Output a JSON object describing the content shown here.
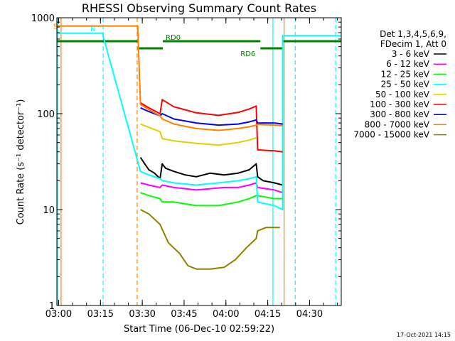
{
  "chart_data": {
    "type": "line",
    "title": "RHESSI Observing Summary Count Rates",
    "xlabel": "Start Time (06-Dec-10 02:59:22)",
    "ylabel": "Count Rate (s⁻¹ detector⁻¹)",
    "y_scale": "log",
    "ylim": [
      1,
      1000
    ],
    "xlim": [
      0,
      102
    ],
    "x_ticks": [
      {
        "value": 0.633,
        "label": "03:00"
      },
      {
        "value": 15.633,
        "label": "03:15"
      },
      {
        "value": 30.633,
        "label": "03:30"
      },
      {
        "value": 45.633,
        "label": "03:45"
      },
      {
        "value": 60.633,
        "label": "04:00"
      },
      {
        "value": 75.633,
        "label": "04:15"
      },
      {
        "value": 90.633,
        "label": "04:30"
      }
    ],
    "y_ticks": [
      {
        "value": 1,
        "label": "1"
      },
      {
        "value": 10,
        "label": "10"
      },
      {
        "value": 100,
        "label": "100"
      },
      {
        "value": 1000,
        "label": "1000"
      }
    ],
    "legend": {
      "position": "right",
      "header": [
        "Det 1,3,4,5,6,9,",
        "FDecim 1, Att 0"
      ]
    },
    "series": [
      {
        "name": "3 - 6 keV",
        "color": "#000000",
        "x": [
          30,
          31.5,
          33,
          35,
          37,
          37.8,
          39,
          42,
          46,
          50,
          55,
          60,
          65,
          69,
          71.5,
          72,
          74,
          78,
          81
        ],
        "y": [
          35,
          30,
          26,
          24,
          21,
          30,
          27,
          25,
          23,
          22,
          24,
          23,
          24,
          26,
          30,
          22,
          20,
          19,
          18
        ]
      },
      {
        "name": "6 - 12 keV",
        "color": "#ff00ff",
        "x": [
          30,
          33,
          37,
          37.8,
          42,
          50,
          60,
          65,
          69,
          71.5,
          72,
          78,
          81
        ],
        "y": [
          19,
          18,
          17,
          18,
          17,
          16,
          17,
          17,
          18,
          19,
          17,
          16,
          15
        ]
      },
      {
        "name": "12 - 25 keV",
        "color": "#00ff00",
        "x": [
          30,
          33,
          37,
          37.8,
          42,
          50,
          58,
          65,
          69,
          71.5,
          72,
          78,
          81
        ],
        "y": [
          15,
          14,
          13,
          12,
          12,
          11,
          11,
          12,
          13,
          14,
          14,
          13,
          13
        ]
      },
      {
        "name": "25 - 50 keV",
        "color": "#00ffff",
        "x": [
          0,
          16.6,
          16.6,
          30,
          33,
          37,
          37.8,
          42,
          50,
          58,
          65,
          69,
          71.5,
          72,
          78,
          81,
          81,
          102
        ],
        "y": [
          690,
          690,
          640,
          25,
          23,
          21,
          20,
          19,
          18,
          19,
          20,
          21,
          22,
          12,
          11,
          10,
          650,
          650
        ]
      },
      {
        "name": "50 - 100 keV",
        "color": "#e0d000",
        "x": [
          30,
          33,
          37,
          37.8,
          42,
          50,
          58,
          65,
          69,
          71.5
        ],
        "y": [
          78,
          72,
          65,
          55,
          52,
          49,
          47,
          50,
          53,
          56
        ]
      },
      {
        "name": "100 - 300 keV",
        "color": "#ff0000",
        "x": [
          30,
          33,
          37,
          37.8,
          42,
          50,
          58,
          65,
          69,
          71.5,
          72,
          78,
          81
        ],
        "y": [
          130,
          115,
          100,
          140,
          118,
          102,
          96,
          103,
          112,
          120,
          42,
          41,
          40
        ]
      },
      {
        "name": "300 - 800 keV",
        "color": "#0000ff",
        "x": [
          30,
          33,
          37,
          37.8,
          42,
          50,
          58,
          65,
          69,
          71.5,
          72,
          78,
          81
        ],
        "y": [
          115,
          105,
          95,
          100,
          88,
          80,
          76,
          78,
          82,
          86,
          80,
          80,
          78
        ]
      },
      {
        "name": "800 - 7000 keV",
        "color": "#ff8000",
        "x": [
          0,
          29,
          30,
          33,
          37,
          37.8,
          42,
          50,
          58,
          65,
          69,
          71.5,
          72,
          78,
          81
        ],
        "y": [
          820,
          820,
          125,
          110,
          95,
          88,
          78,
          70,
          67,
          70,
          73,
          76,
          77,
          76,
          75
        ]
      },
      {
        "name": "7000 - 15000 keV",
        "color": "#8b8000",
        "x": [
          30,
          33,
          37,
          40,
          44,
          47,
          50,
          55,
          60,
          64,
          68,
          71.5,
          72,
          75,
          78,
          80
        ],
        "y": [
          10,
          9,
          7,
          4.5,
          3.5,
          2.6,
          2.4,
          2.4,
          2.5,
          3,
          4,
          5,
          6,
          6.5,
          6.5,
          6.5
        ]
      }
    ],
    "state_bars": [
      {
        "label": "RD0",
        "color": "#008000",
        "segments": [
          [
            0,
            29
          ],
          [
            38,
            73
          ],
          [
            81,
            102
          ]
        ],
        "y_level": 570
      },
      {
        "label": "RD6",
        "color": "#008000",
        "segments": [
          [
            29,
            38
          ],
          [
            73,
            81
          ]
        ],
        "y_level": 480
      },
      {
        "label": "N",
        "color": "#00ffff",
        "segments": [],
        "y_level": 0
      },
      {
        "label": "S",
        "color": "#ff8000",
        "segments": [],
        "y_level": 0
      }
    ],
    "vertical_markers": [
      {
        "x": 0.3,
        "color": "#00ffff",
        "style": "solid"
      },
      {
        "x": 1.5,
        "color": "#ff8000",
        "style": "solid"
      },
      {
        "x": 16.6,
        "color": "#00ffff",
        "style": "dashed"
      },
      {
        "x": 28.8,
        "color": "#ff8000",
        "style": "dashed"
      },
      {
        "x": 77.5,
        "color": "#00ffff",
        "style": "solid"
      },
      {
        "x": 81.5,
        "color": "#ff8000",
        "style": "solid"
      },
      {
        "x": 85.5,
        "color": "#00ffff",
        "style": "dashed"
      },
      {
        "x": 100,
        "color": "#00ffff",
        "style": "dashed"
      }
    ]
  },
  "footer": {
    "timestamp": "17-Oct-2021 14:15"
  }
}
